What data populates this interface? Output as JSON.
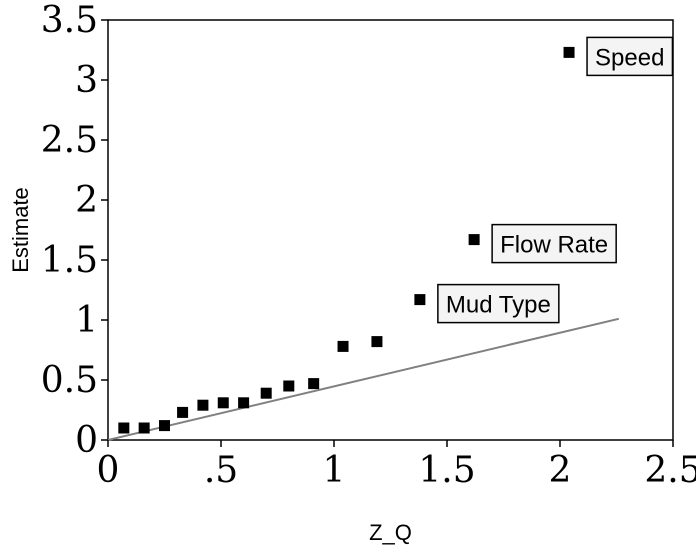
{
  "chart_data": {
    "type": "scatter",
    "xlabel": "Z_Q",
    "ylabel": "Estimate",
    "xlim": [
      0,
      2.5
    ],
    "ylim": [
      0,
      3.5
    ],
    "x_ticks": [
      {
        "value": 0,
        "label": "0"
      },
      {
        "value": 0.5,
        "label": ".5"
      },
      {
        "value": 1,
        "label": "1"
      },
      {
        "value": 1.5,
        "label": "1.5"
      },
      {
        "value": 2,
        "label": "2"
      },
      {
        "value": 2.5,
        "label": "2.5"
      }
    ],
    "y_ticks": [
      {
        "value": 0,
        "label": "0"
      },
      {
        "value": 0.5,
        "label": "0.5"
      },
      {
        "value": 1,
        "label": "1"
      },
      {
        "value": 1.5,
        "label": "1.5"
      },
      {
        "value": 2,
        "label": "2"
      },
      {
        "value": 2.5,
        "label": "2.5"
      },
      {
        "value": 3,
        "label": "3"
      },
      {
        "value": 3.5,
        "label": "3.5"
      }
    ],
    "points": [
      {
        "x": 0.07,
        "y": 0.1
      },
      {
        "x": 0.16,
        "y": 0.1
      },
      {
        "x": 0.25,
        "y": 0.12
      },
      {
        "x": 0.33,
        "y": 0.23
      },
      {
        "x": 0.42,
        "y": 0.29
      },
      {
        "x": 0.51,
        "y": 0.31
      },
      {
        "x": 0.6,
        "y": 0.31
      },
      {
        "x": 0.7,
        "y": 0.39
      },
      {
        "x": 0.8,
        "y": 0.45
      },
      {
        "x": 0.91,
        "y": 0.47
      },
      {
        "x": 1.04,
        "y": 0.78
      },
      {
        "x": 1.19,
        "y": 0.82
      },
      {
        "x": 1.38,
        "y": 1.17
      },
      {
        "x": 1.62,
        "y": 1.67
      },
      {
        "x": 2.04,
        "y": 3.23
      }
    ],
    "reference_line": {
      "x": [
        0,
        2.26
      ],
      "y": [
        0,
        1.01
      ],
      "color": "#808080"
    },
    "annotations": [
      {
        "text": "Mud Type",
        "x": 1.38,
        "y": 1.17
      },
      {
        "text": "Flow Rate",
        "x": 1.62,
        "y": 1.67
      },
      {
        "text": "Speed",
        "x": 2.04,
        "y": 3.23
      }
    ],
    "grid": false,
    "marker": "square",
    "marker_color": "#000000"
  }
}
